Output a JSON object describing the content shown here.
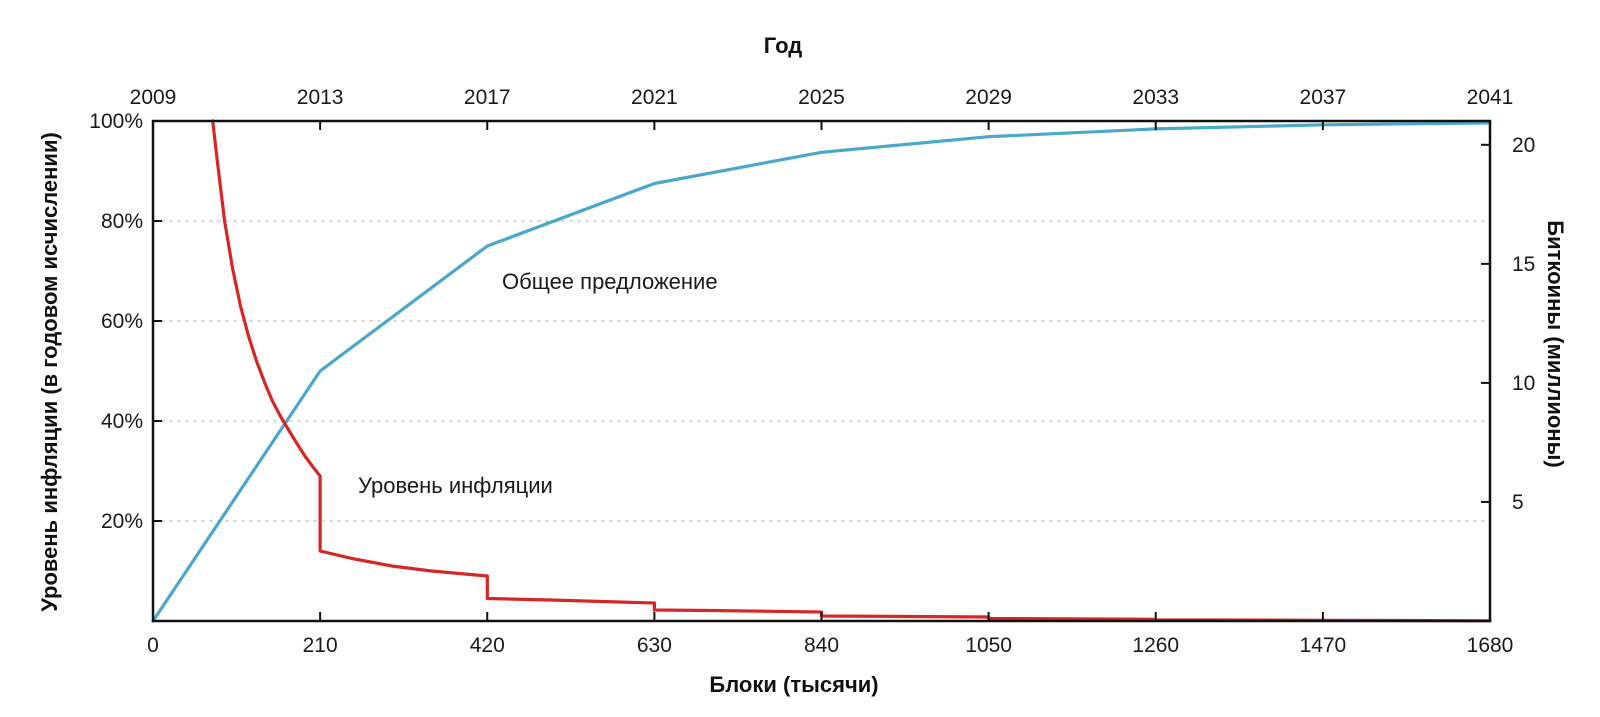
{
  "chart_data": {
    "type": "line",
    "title": "",
    "top_axis": {
      "label": "Год",
      "ticks": [
        "2009",
        "2013",
        "2017",
        "2021",
        "2025",
        "2029",
        "2033",
        "2037",
        "2041"
      ]
    },
    "x_axis": {
      "label": "Блоки (тысячи)",
      "ticks": [
        0,
        210,
        420,
        630,
        840,
        1050,
        1260,
        1470,
        1680
      ],
      "range": [
        0,
        1680
      ]
    },
    "y_left": {
      "label": "Уровень инфляции (в годовом исчислении)",
      "ticks": [
        "20%",
        "40%",
        "60%",
        "80%",
        "100%"
      ],
      "tick_values": [
        20,
        40,
        60,
        80,
        100
      ],
      "range": [
        0,
        100
      ]
    },
    "y_right": {
      "label": "Биткоины (миллионы)",
      "ticks": [
        "5",
        "10",
        "15",
        "20"
      ],
      "tick_values": [
        5,
        10,
        15,
        20
      ],
      "range": [
        0,
        21
      ]
    },
    "grid": true,
    "series": [
      {
        "name": "Общее предложение",
        "axis": "right",
        "color": "#4aa8c8",
        "x": [
          0,
          210,
          420,
          630,
          840,
          1050,
          1260,
          1470,
          1680
        ],
        "y": [
          0,
          10.5,
          15.75,
          18.375,
          19.6875,
          20.34,
          20.67,
          20.84,
          20.92
        ]
      },
      {
        "name": "Уровень инфляции",
        "axis": "left",
        "color": "#d62728",
        "x": [
          75,
          80,
          90,
          100,
          110,
          120,
          130,
          140,
          150,
          160,
          170,
          180,
          190,
          200,
          210,
          210,
          250,
          300,
          350,
          420,
          420,
          500,
          630,
          630,
          700,
          840,
          840,
          1050,
          1050,
          1260,
          1260,
          1470,
          1680
        ],
        "y": [
          100,
          93,
          80,
          70.5,
          63,
          57,
          52,
          47.8,
          44,
          41,
          38.3,
          35.7,
          33.2,
          31,
          29,
          14,
          12.5,
          11,
          10,
          9,
          4.5,
          4.2,
          3.6,
          2.2,
          2.1,
          1.8,
          1.0,
          0.8,
          0.5,
          0.35,
          0.25,
          0.15,
          0.05
        ]
      }
    ],
    "annotations": [
      {
        "text": "Общее предложение",
        "series": "Общее предложение"
      },
      {
        "text": "Уровень инфляции",
        "series": "Уровень инфляции"
      }
    ]
  }
}
